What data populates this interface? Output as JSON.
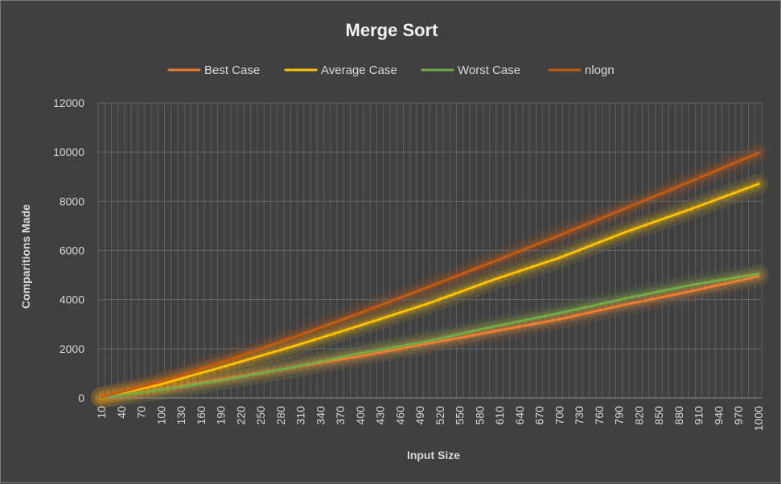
{
  "chart_data": {
    "type": "line",
    "title": "Merge Sort",
    "xlabel": "Input Size",
    "ylabel": "Comparitions Made",
    "ylim": [
      0,
      12000
    ],
    "yticks": [
      0,
      2000,
      4000,
      6000,
      8000,
      10000,
      12000
    ],
    "x_range": [
      10,
      1000
    ],
    "x_step": 10,
    "x_tick_labels": [
      "10",
      "40",
      "70",
      "100",
      "130",
      "160",
      "190",
      "220",
      "250",
      "280",
      "310",
      "340",
      "370",
      "400",
      "430",
      "460",
      "490",
      "520",
      "550",
      "580",
      "610",
      "640",
      "670",
      "700",
      "730",
      "760",
      "790",
      "820",
      "850",
      "880",
      "910",
      "940",
      "970",
      "1000"
    ],
    "grid": true,
    "legend_position": "top",
    "series": [
      {
        "name": "Best Case",
        "color": "#ed7d31",
        "x": [
          10,
          100,
          200,
          300,
          400,
          500,
          600,
          700,
          800,
          900,
          1000
        ],
        "values": [
          15,
          350,
          800,
          1250,
          1700,
          2200,
          2700,
          3200,
          3800,
          4350,
          4950
        ]
      },
      {
        "name": "Average Case",
        "color": "#ffc000",
        "x": [
          10,
          100,
          200,
          300,
          400,
          500,
          600,
          700,
          800,
          900,
          1000
        ],
        "values": [
          20,
          560,
          1320,
          2110,
          2950,
          3820,
          4800,
          5700,
          6750,
          7700,
          8700
        ]
      },
      {
        "name": "Worst Case",
        "color": "#70ad47",
        "x": [
          10,
          100,
          200,
          300,
          400,
          500,
          600,
          700,
          800,
          900,
          1000
        ],
        "values": [
          10,
          330,
          760,
          1260,
          1820,
          2300,
          2900,
          3450,
          4050,
          4600,
          5050
        ]
      },
      {
        "name": "nlogn",
        "color": "#c55a11",
        "x": [
          10,
          100,
          200,
          300,
          400,
          500,
          600,
          700,
          800,
          900,
          1000
        ],
        "values": [
          33,
          664,
          1529,
          2469,
          3458,
          4483,
          5537,
          6615,
          7715,
          8832,
          9966
        ]
      }
    ]
  }
}
